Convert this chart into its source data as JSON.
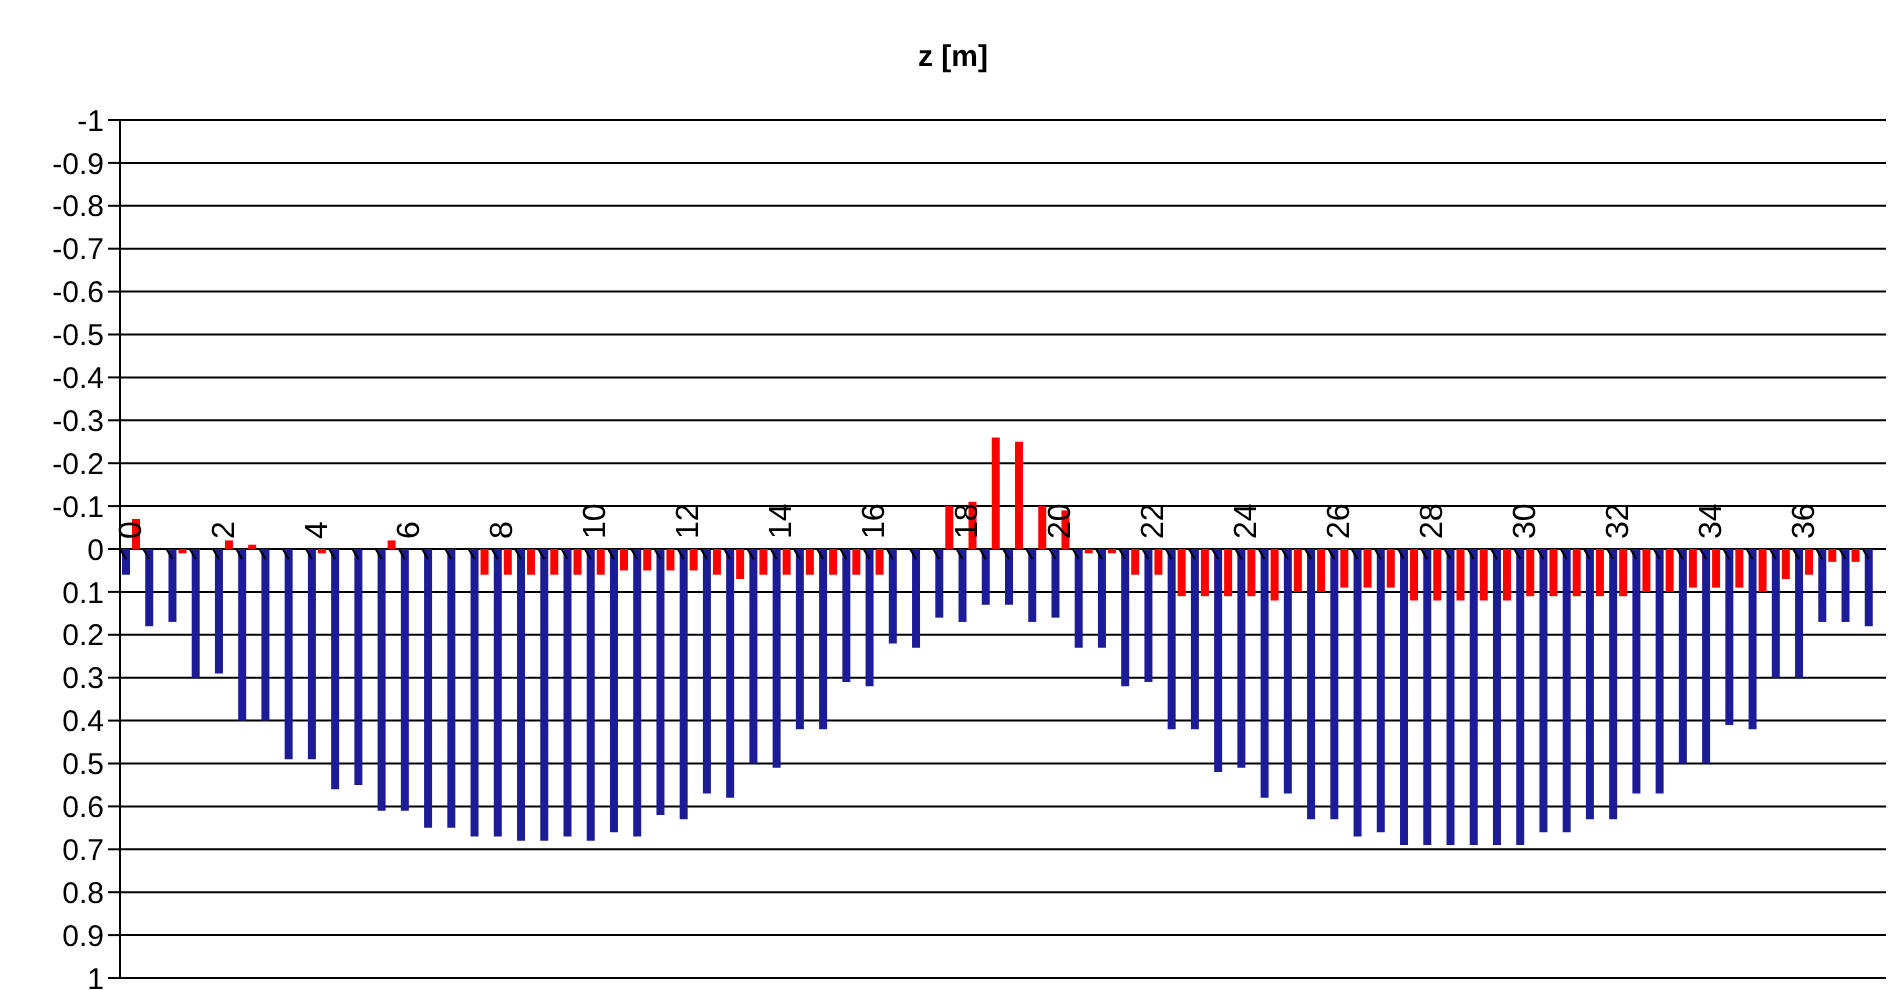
{
  "chart_data": {
    "type": "bar",
    "title": "z [m]",
    "categories": [
      "0",
      null,
      null,
      null,
      "2",
      null,
      null,
      null,
      "4",
      null,
      null,
      null,
      "6",
      null,
      null,
      null,
      "8",
      null,
      null,
      null,
      "10",
      null,
      null,
      null,
      "12",
      null,
      null,
      null,
      "14",
      null,
      null,
      null,
      "16",
      null,
      null,
      null,
      "18",
      null,
      null,
      null,
      "20",
      null,
      null,
      null,
      "22",
      null,
      null,
      null,
      "24",
      null,
      null,
      null,
      "26",
      null,
      null,
      null,
      "28",
      null,
      null,
      null,
      "30",
      null,
      null,
      null,
      "32",
      null,
      null,
      null,
      "34",
      null,
      null,
      null,
      "36",
      null,
      null,
      null
    ],
    "series": [
      {
        "color": "#1c1c96",
        "values": [
          0.06,
          0.18,
          0.17,
          0.3,
          0.29,
          0.4,
          0.4,
          0.49,
          0.49,
          0.56,
          0.55,
          0.61,
          0.61,
          0.65,
          0.65,
          0.67,
          0.67,
          0.68,
          0.68,
          0.67,
          0.68,
          0.66,
          0.67,
          0.62,
          0.63,
          0.57,
          0.58,
          0.5,
          0.51,
          0.42,
          0.42,
          0.31,
          0.32,
          0.22,
          0.23,
          0.16,
          0.17,
          0.13,
          0.13,
          0.17,
          0.16,
          0.23,
          0.23,
          0.32,
          0.31,
          0.42,
          0.42,
          0.52,
          0.51,
          0.58,
          0.57,
          0.63,
          0.63,
          0.67,
          0.66,
          0.69,
          0.69,
          0.69,
          0.69,
          0.69,
          0.69,
          0.66,
          0.66,
          0.63,
          0.63,
          0.57,
          0.57,
          0.5,
          0.5,
          0.41,
          0.42,
          0.3,
          0.3,
          0.17,
          0.17,
          0.18
        ]
      },
      {
        "color": "#ff0000",
        "values": [
          -0.07,
          0,
          0.01,
          0,
          -0.02,
          -0.01,
          0,
          0,
          0.01,
          0,
          0,
          -0.02,
          0,
          0,
          0,
          0.06,
          0.06,
          0.06,
          0.06,
          0.06,
          0.06,
          0.05,
          0.05,
          0.05,
          0.05,
          0.06,
          0.07,
          0.06,
          0.06,
          0.06,
          0.06,
          0.06,
          0.06,
          0,
          0,
          -0.1,
          -0.11,
          -0.26,
          -0.25,
          -0.1,
          -0.09,
          0.01,
          0.01,
          0.06,
          0.06,
          0.11,
          0.11,
          0.11,
          0.11,
          0.12,
          0.1,
          0.1,
          0.09,
          0.09,
          0.09,
          0.12,
          0.12,
          0.12,
          0.12,
          0.12,
          0.11,
          0.11,
          0.11,
          0.11,
          0.11,
          0.1,
          0.1,
          0.09,
          0.09,
          0.09,
          0.1,
          0.07,
          0.06,
          0.03,
          0.03,
          null
        ]
      }
    ],
    "ylim": [
      1,
      -1
    ],
    "yticks": [
      -1,
      -0.9,
      -0.8,
      -0.7,
      -0.6,
      -0.5,
      -0.4,
      -0.3,
      -0.2,
      -0.1,
      0,
      0.1,
      0.2,
      0.3,
      0.4,
      0.5,
      0.6,
      0.7,
      0.8,
      0.9,
      1
    ],
    "grid": "y"
  }
}
